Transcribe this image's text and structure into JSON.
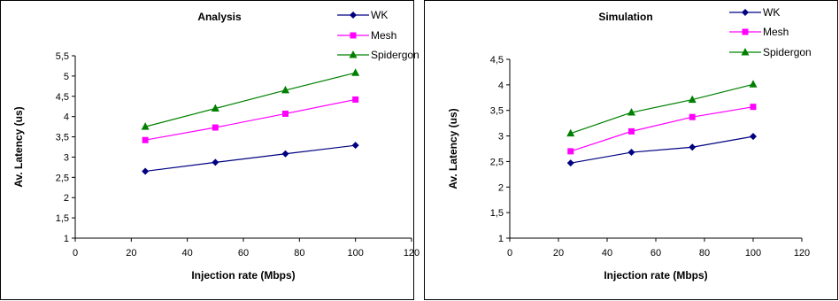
{
  "chart_data": [
    {
      "type": "line",
      "title": "Analysis",
      "xlabel": "Injection rate (Mbps)",
      "ylabel": "Av. Latency (us)",
      "xlim": [
        0,
        120
      ],
      "ylim": [
        1,
        5.5
      ],
      "x_ticks": [
        "0",
        "20",
        "40",
        "60",
        "80",
        "100",
        "120"
      ],
      "y_ticks": [
        "1",
        "1,5",
        "2",
        "2,5",
        "3",
        "3,5",
        "4",
        "4,5",
        "5",
        "5,5"
      ],
      "legend": "top-right",
      "grid": false,
      "x": [
        25,
        50,
        75,
        100
      ],
      "series": [
        {
          "name": "WK",
          "values": [
            2.65,
            2.87,
            3.08,
            3.29
          ],
          "color": "#000080",
          "marker": "diamond"
        },
        {
          "name": "Mesh",
          "values": [
            3.42,
            3.73,
            4.07,
            4.42
          ],
          "color": "#ff00ff",
          "marker": "square"
        },
        {
          "name": "Spidergon",
          "values": [
            3.75,
            4.2,
            4.65,
            5.08
          ],
          "color": "#008000",
          "marker": "triangle"
        }
      ]
    },
    {
      "type": "line",
      "title": "Simulation",
      "xlabel": "Injection rate (Mbps)",
      "ylabel": "Av. Latency (us)",
      "xlim": [
        0,
        120
      ],
      "ylim": [
        1,
        4.5
      ],
      "x_ticks": [
        "0",
        "20",
        "40",
        "60",
        "80",
        "100",
        "120"
      ],
      "y_ticks": [
        "1",
        "1,5",
        "2",
        "2,5",
        "3",
        "3,5",
        "4",
        "4,5"
      ],
      "legend": "top-right",
      "grid": false,
      "x": [
        25,
        50,
        75,
        100
      ],
      "series": [
        {
          "name": "WK",
          "values": [
            2.47,
            2.68,
            2.78,
            2.99
          ],
          "color": "#000080",
          "marker": "diamond"
        },
        {
          "name": "Mesh",
          "values": [
            2.7,
            3.09,
            3.37,
            3.57
          ],
          "color": "#ff00ff",
          "marker": "square"
        },
        {
          "name": "Spidergon",
          "values": [
            3.05,
            3.46,
            3.71,
            4.01
          ],
          "color": "#008000",
          "marker": "triangle"
        }
      ]
    }
  ]
}
